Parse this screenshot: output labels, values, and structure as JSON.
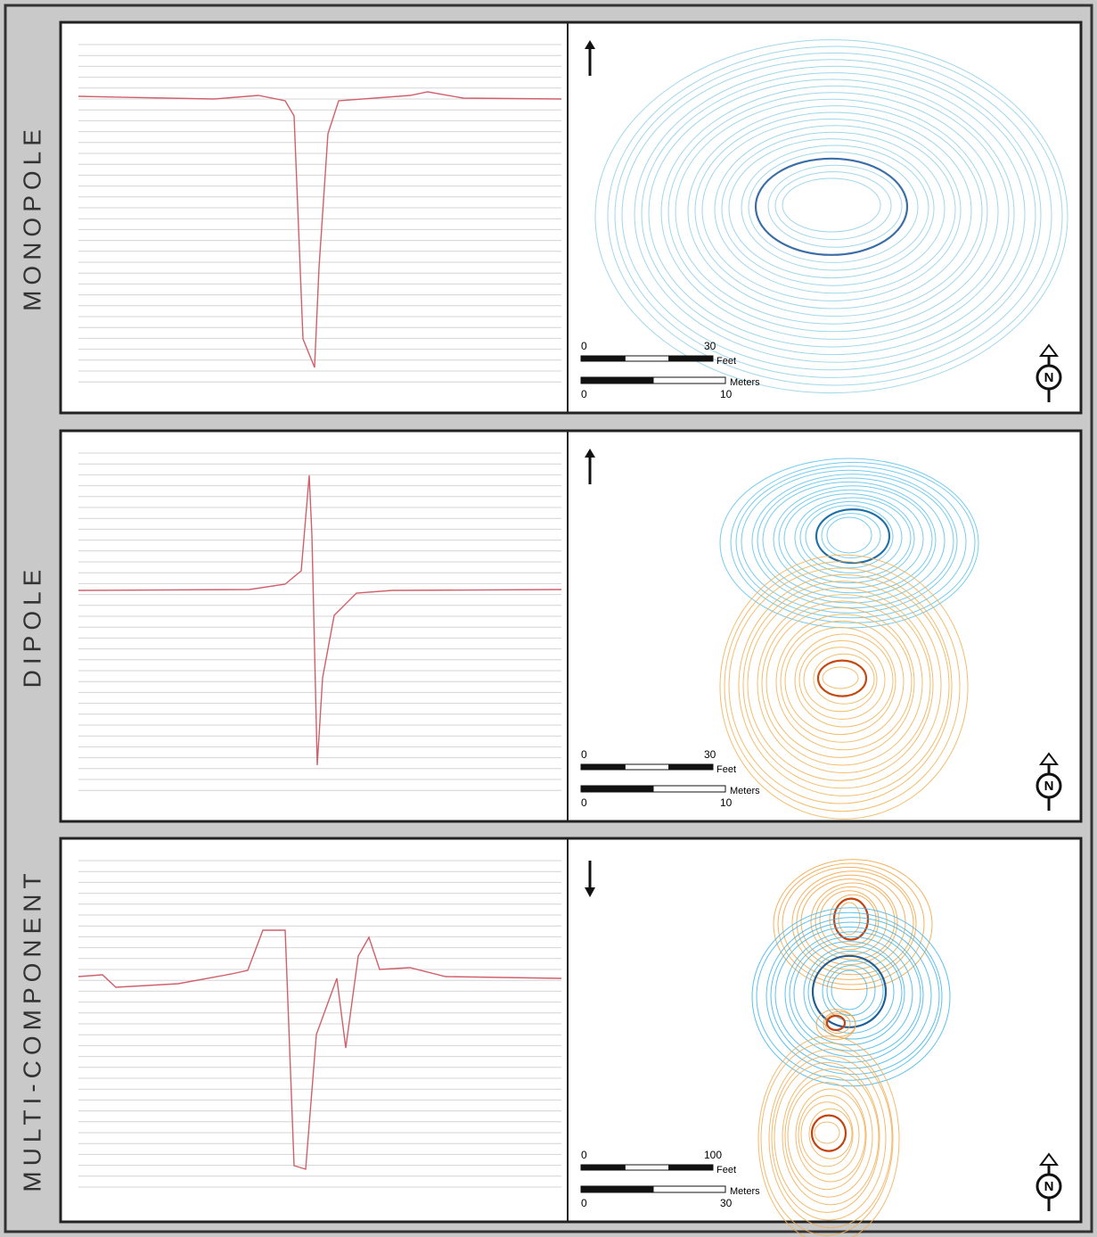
{
  "panels": [
    {
      "label": "MONOPOLE",
      "scale": {
        "feet_ticks": [
          0,
          30
        ],
        "feet_unit": "Feet",
        "meter_ticks": [
          0,
          10
        ],
        "meter_unit": "Meters"
      },
      "north": "N"
    },
    {
      "label": "DIPOLE",
      "scale": {
        "feet_ticks": [
          0,
          30
        ],
        "feet_unit": "Feet",
        "meter_ticks": [
          0,
          10
        ],
        "meter_unit": "Meters"
      },
      "north": "N"
    },
    {
      "label": "MULTI-COMPONENT",
      "scale": {
        "feet_ticks": [
          0,
          100
        ],
        "feet_unit": "Feet",
        "meter_ticks": [
          0,
          30
        ],
        "meter_unit": "Meters"
      },
      "north": "N"
    }
  ]
}
